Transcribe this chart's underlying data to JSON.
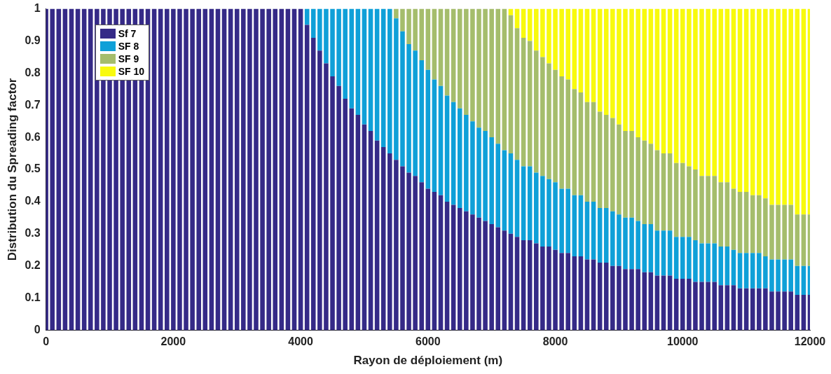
{
  "chart_data": {
    "type": "bar",
    "stacked": true,
    "xlabel": "Rayon de déploiement (m)",
    "ylabel": "Distribution du Spreading factor",
    "x": [
      0,
      100,
      200,
      300,
      400,
      500,
      600,
      700,
      800,
      900,
      1000,
      1100,
      1200,
      1300,
      1400,
      1500,
      1600,
      1700,
      1800,
      1900,
      2000,
      2100,
      2200,
      2300,
      2400,
      2500,
      2600,
      2700,
      2800,
      2900,
      3000,
      3100,
      3200,
      3300,
      3400,
      3500,
      3600,
      3700,
      3800,
      3900,
      4000,
      4100,
      4200,
      4300,
      4400,
      4500,
      4600,
      4700,
      4800,
      4900,
      5000,
      5100,
      5200,
      5300,
      5400,
      5500,
      5600,
      5700,
      5800,
      5900,
      6000,
      6100,
      6200,
      6300,
      6400,
      6500,
      6600,
      6700,
      6800,
      6900,
      7000,
      7100,
      7200,
      7300,
      7400,
      7500,
      7600,
      7700,
      7800,
      7900,
      8000,
      8100,
      8200,
      8300,
      8400,
      8500,
      8600,
      8700,
      8800,
      8900,
      9000,
      9100,
      9200,
      9300,
      9400,
      9500,
      9600,
      9700,
      9800,
      9900,
      10000,
      10100,
      10200,
      10300,
      10400,
      10500,
      10600,
      10700,
      10800,
      10900,
      11000,
      11100,
      11200,
      11300,
      11400,
      11500,
      11600,
      11700,
      11800,
      11900,
      12000
    ],
    "series": [
      {
        "name": "Sf 7",
        "color": "#352a87",
        "values": [
          1,
          1,
          1,
          1,
          1,
          1,
          1,
          1,
          1,
          1,
          1,
          1,
          1,
          1,
          1,
          1,
          1,
          1,
          1,
          1,
          1,
          1,
          1,
          1,
          1,
          1,
          1,
          1,
          1,
          1,
          1,
          1,
          1,
          1,
          1,
          1,
          1,
          1,
          1,
          1,
          1,
          0.95,
          0.91,
          0.87,
          0.83,
          0.79,
          0.76,
          0.72,
          0.69,
          0.67,
          0.64,
          0.62,
          0.59,
          0.57,
          0.55,
          0.53,
          0.51,
          0.49,
          0.48,
          0.46,
          0.44,
          0.43,
          0.42,
          0.4,
          0.39,
          0.38,
          0.37,
          0.36,
          0.35,
          0.34,
          0.33,
          0.32,
          0.31,
          0.3,
          0.29,
          0.28,
          0.28,
          0.27,
          0.26,
          0.26,
          0.25,
          0.24,
          0.24,
          0.23,
          0.23,
          0.22,
          0.22,
          0.21,
          0.21,
          0.2,
          0.2,
          0.19,
          0.19,
          0.19,
          0.18,
          0.18,
          0.17,
          0.17,
          0.17,
          0.16,
          0.16,
          0.16,
          0.15,
          0.15,
          0.15,
          0.15,
          0.14,
          0.14,
          0.14,
          0.13,
          0.13,
          0.13,
          0.13,
          0.13,
          0.12,
          0.12,
          0.12,
          0.12,
          0.11,
          0.11,
          0.11
        ]
      },
      {
        "name": "SF 8",
        "color": "#0fa0d8",
        "values": [
          0,
          0,
          0,
          0,
          0,
          0,
          0,
          0,
          0,
          0,
          0,
          0,
          0,
          0,
          0,
          0,
          0,
          0,
          0,
          0,
          0,
          0,
          0,
          0,
          0,
          0,
          0,
          0,
          0,
          0,
          0,
          0,
          0,
          0,
          0,
          0,
          0,
          0,
          0,
          0,
          0,
          0.05,
          0.09,
          0.13,
          0.17,
          0.21,
          0.24,
          0.28,
          0.31,
          0.33,
          0.36,
          0.38,
          0.41,
          0.43,
          0.45,
          0.44,
          0.42,
          0.4,
          0.39,
          0.38,
          0.37,
          0.35,
          0.34,
          0.33,
          0.32,
          0.31,
          0.3,
          0.29,
          0.28,
          0.28,
          0.27,
          0.26,
          0.25,
          0.25,
          0.24,
          0.23,
          0.23,
          0.22,
          0.22,
          0.21,
          0.21,
          0.2,
          0.2,
          0.19,
          0.19,
          0.18,
          0.18,
          0.17,
          0.17,
          0.17,
          0.16,
          0.16,
          0.16,
          0.15,
          0.15,
          0.15,
          0.14,
          0.14,
          0.14,
          0.13,
          0.13,
          0.13,
          0.13,
          0.12,
          0.12,
          0.12,
          0.12,
          0.12,
          0.11,
          0.11,
          0.11,
          0.11,
          0.11,
          0.1,
          0.1,
          0.1,
          0.1,
          0.1,
          0.09,
          0.09,
          0.09
        ]
      },
      {
        "name": "SF 9",
        "color": "#a5bd6c",
        "values": [
          0,
          0,
          0,
          0,
          0,
          0,
          0,
          0,
          0,
          0,
          0,
          0,
          0,
          0,
          0,
          0,
          0,
          0,
          0,
          0,
          0,
          0,
          0,
          0,
          0,
          0,
          0,
          0,
          0,
          0,
          0,
          0,
          0,
          0,
          0,
          0,
          0,
          0,
          0,
          0,
          0,
          0,
          0,
          0,
          0,
          0,
          0,
          0,
          0,
          0,
          0,
          0,
          0,
          0,
          0,
          0.03,
          0.07,
          0.11,
          0.13,
          0.16,
          0.19,
          0.22,
          0.24,
          0.27,
          0.29,
          0.31,
          0.33,
          0.35,
          0.37,
          0.38,
          0.4,
          0.42,
          0.44,
          0.43,
          0.41,
          0.4,
          0.39,
          0.38,
          0.37,
          0.36,
          0.35,
          0.35,
          0.34,
          0.33,
          0.32,
          0.31,
          0.31,
          0.3,
          0.29,
          0.29,
          0.28,
          0.27,
          0.27,
          0.26,
          0.26,
          0.25,
          0.25,
          0.24,
          0.24,
          0.23,
          0.23,
          0.22,
          0.22,
          0.21,
          0.21,
          0.21,
          0.2,
          0.2,
          0.19,
          0.19,
          0.19,
          0.18,
          0.18,
          0.18,
          0.17,
          0.17,
          0.17,
          0.17,
          0.16,
          0.16,
          0.16
        ]
      },
      {
        "name": "SF 10",
        "color": "#f8fa0d",
        "values": [
          0,
          0,
          0,
          0,
          0,
          0,
          0,
          0,
          0,
          0,
          0,
          0,
          0,
          0,
          0,
          0,
          0,
          0,
          0,
          0,
          0,
          0,
          0,
          0,
          0,
          0,
          0,
          0,
          0,
          0,
          0,
          0,
          0,
          0,
          0,
          0,
          0,
          0,
          0,
          0,
          0,
          0,
          0,
          0,
          0,
          0,
          0,
          0,
          0,
          0,
          0,
          0,
          0,
          0,
          0,
          0,
          0,
          0,
          0,
          0,
          0,
          0,
          0,
          0,
          0,
          0,
          0,
          0,
          0,
          0,
          0,
          0,
          0,
          0.02,
          0.06,
          0.09,
          0.1,
          0.13,
          0.15,
          0.17,
          0.19,
          0.21,
          0.22,
          0.25,
          0.26,
          0.29,
          0.29,
          0.32,
          0.33,
          0.34,
          0.36,
          0.38,
          0.38,
          0.4,
          0.41,
          0.42,
          0.44,
          0.45,
          0.45,
          0.48,
          0.48,
          0.49,
          0.5,
          0.52,
          0.52,
          0.52,
          0.54,
          0.54,
          0.56,
          0.57,
          0.57,
          0.58,
          0.58,
          0.59,
          0.61,
          0.61,
          0.61,
          0.61,
          0.64,
          0.64,
          0.64
        ]
      }
    ],
    "xlim": [
      0,
      12000
    ],
    "xticks": [
      0,
      2000,
      4000,
      6000,
      8000,
      10000,
      12000
    ],
    "ylim": [
      0,
      1
    ],
    "yticks": [
      0,
      0.1,
      0.2,
      0.3,
      0.4,
      0.5,
      0.6,
      0.7,
      0.8,
      0.9,
      1
    ],
    "grid": false,
    "legend": "top left"
  }
}
